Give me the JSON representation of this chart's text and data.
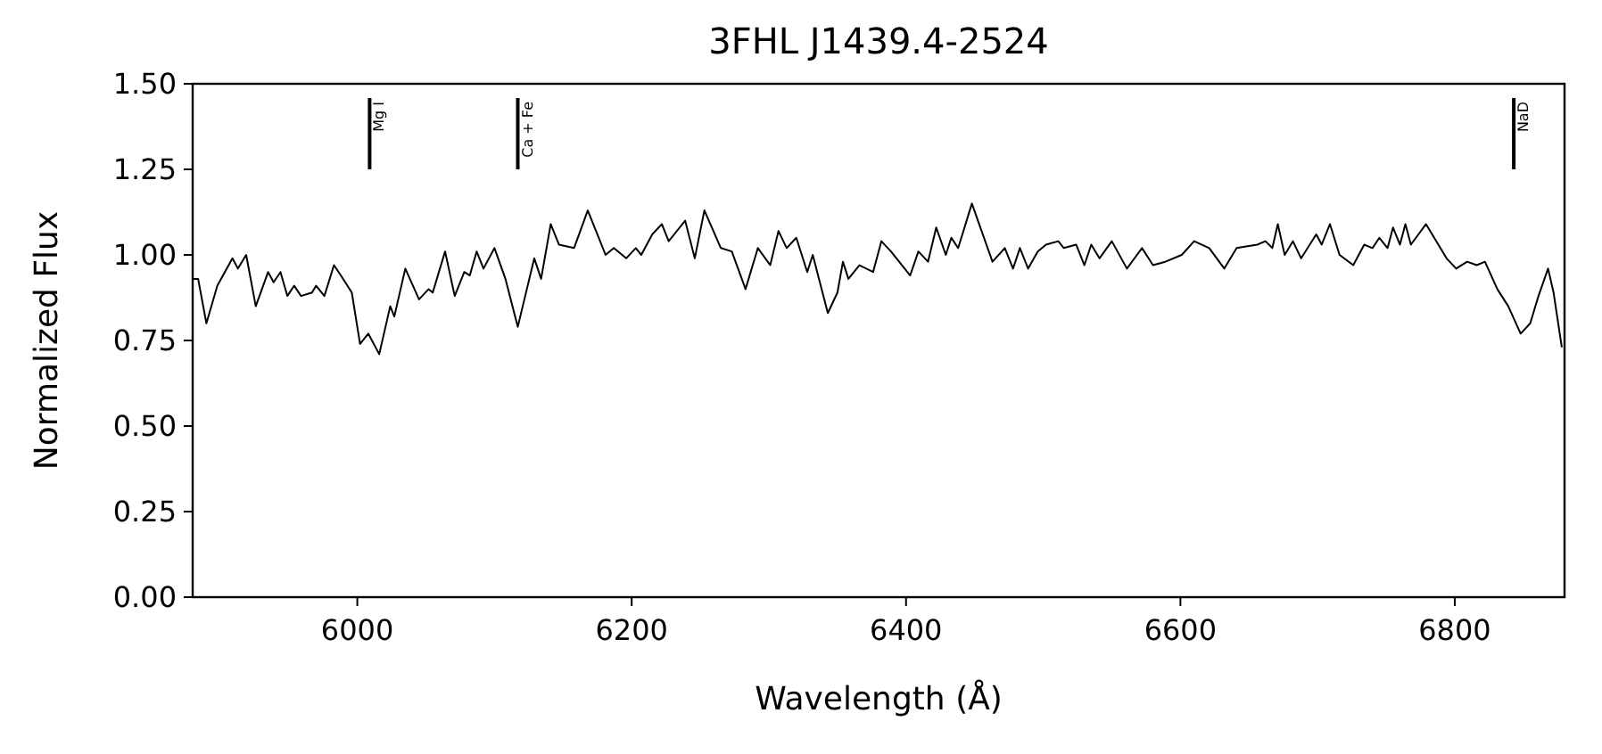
{
  "chart_data": {
    "type": "line",
    "title": "3FHL J1439.4-2524",
    "xlabel": "Wavelength (Å)",
    "ylabel": "Normalized Flux",
    "xlim": [
      5880,
      6880
    ],
    "xticks": [
      6000,
      6200,
      6400,
      6600,
      6800
    ],
    "ylim": [
      0,
      1.5
    ],
    "yticks": [
      {
        "value": 0,
        "label": "0.00"
      },
      {
        "value": 0.25,
        "label": "0.25"
      },
      {
        "value": 0.5,
        "label": "0.50"
      },
      {
        "value": 0.75,
        "label": "0.75"
      },
      {
        "value": 1,
        "label": "1.00"
      },
      {
        "value": 1.25,
        "label": "1.25"
      },
      {
        "value": 1.5,
        "label": "1.50"
      }
    ],
    "marker": "none",
    "line_style": "solid",
    "ref_lines": [
      {
        "axis": "x",
        "value": 6009,
        "label": "Mg I",
        "color": "#000000"
      },
      {
        "axis": "x",
        "value": 6117,
        "label": "Ca + Fe",
        "color": "#000000"
      },
      {
        "axis": "x",
        "value": 6843,
        "label": "NaD",
        "color": "#000000"
      }
    ],
    "series": [
      {
        "color": "#000000",
        "x": [
          5880,
          5884,
          5890,
          5898,
          5909,
          5913,
          5919,
          5926,
          5935,
          5939,
          5944,
          5949,
          5954,
          5959,
          5967,
          5970,
          5976,
          5983,
          5988,
          5996,
          6002,
          6008,
          6016,
          6024,
          6027,
          6035,
          6045,
          6052,
          6055,
          6064,
          6071,
          6078,
          6082,
          6087,
          6092,
          6100,
          6108,
          6117,
          6129,
          6134,
          6141,
          6147,
          6158,
          6168,
          6181,
          6187,
          6196,
          6203,
          6207,
          6215,
          6222,
          6227,
          6239,
          6246,
          6253,
          6265,
          6273,
          6283,
          6292,
          6301,
          6307,
          6313,
          6320,
          6328,
          6332,
          6343,
          6350,
          6354,
          6358,
          6366,
          6376,
          6382,
          6389,
          6403,
          6409,
          6416,
          6422,
          6429,
          6433,
          6438,
          6448,
          6463,
          6472,
          6478,
          6483,
          6489,
          6496,
          6502,
          6511,
          6515,
          6524,
          6530,
          6535,
          6541,
          6550,
          6561,
          6572,
          6580,
          6589,
          6601,
          6610,
          6621,
          6632,
          6641,
          6656,
          6662,
          6667,
          6671,
          6676,
          6682,
          6688,
          6699,
          6703,
          6709,
          6716,
          6726,
          6734,
          6740,
          6745,
          6751,
          6755,
          6760,
          6764,
          6768,
          6779,
          6794,
          6801,
          6809,
          6816,
          6822,
          6831,
          6839,
          6848,
          6855,
          6861,
          6868,
          6872,
          6878
        ],
        "values": [
          0.93,
          0.93,
          0.8,
          0.91,
          0.99,
          0.96,
          1.0,
          0.85,
          0.95,
          0.92,
          0.95,
          0.88,
          0.91,
          0.88,
          0.89,
          0.91,
          0.88,
          0.97,
          0.94,
          0.89,
          0.74,
          0.77,
          0.71,
          0.85,
          0.82,
          0.96,
          0.87,
          0.9,
          0.89,
          1.01,
          0.88,
          0.95,
          0.94,
          1.01,
          0.96,
          1.02,
          0.93,
          0.79,
          0.99,
          0.93,
          1.09,
          1.03,
          1.02,
          1.13,
          1.0,
          1.02,
          0.99,
          1.02,
          1.0,
          1.06,
          1.09,
          1.04,
          1.1,
          0.99,
          1.13,
          1.02,
          1.01,
          0.9,
          1.02,
          0.97,
          1.07,
          1.02,
          1.05,
          0.95,
          1.0,
          0.83,
          0.89,
          0.98,
          0.93,
          0.97,
          0.95,
          1.04,
          1.01,
          0.94,
          1.01,
          0.98,
          1.08,
          1.0,
          1.05,
          1.02,
          1.15,
          0.98,
          1.02,
          0.96,
          1.02,
          0.96,
          1.01,
          1.03,
          1.04,
          1.02,
          1.03,
          0.97,
          1.03,
          0.99,
          1.04,
          0.96,
          1.02,
          0.97,
          0.98,
          1.0,
          1.04,
          1.02,
          0.96,
          1.02,
          1.03,
          1.04,
          1.02,
          1.09,
          1.0,
          1.04,
          0.99,
          1.06,
          1.03,
          1.09,
          1.0,
          0.97,
          1.03,
          1.02,
          1.05,
          1.02,
          1.08,
          1.03,
          1.09,
          1.03,
          1.09,
          0.99,
          0.96,
          0.98,
          0.97,
          0.98,
          0.9,
          0.85,
          0.77,
          0.8,
          0.88,
          0.96,
          0.89,
          0.73
        ]
      }
    ]
  }
}
